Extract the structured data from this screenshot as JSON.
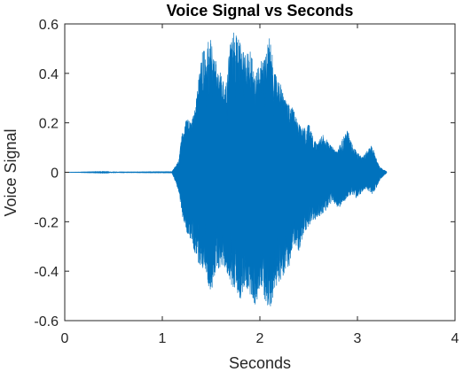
{
  "chart_data": {
    "type": "line",
    "title": "Voice Signal vs Seconds",
    "xlabel": "Seconds",
    "ylabel": "Voice Signal",
    "xlim": [
      0,
      4
    ],
    "ylim": [
      -0.6,
      0.6
    ],
    "xticks": [
      0,
      1,
      2,
      3,
      4
    ],
    "xtick_labels": [
      "0",
      "1",
      "2",
      "3",
      "4"
    ],
    "yticks": [
      0.6,
      0.4,
      0.2,
      0,
      -0.2,
      -0.4,
      -0.6
    ],
    "ytick_labels": [
      "0.6",
      "0.4",
      "0.2",
      "0",
      "-0.2",
      "-0.4",
      "-0.6"
    ],
    "grid": false,
    "line_color": "#0072BD",
    "series": [
      {
        "envelope": {
          "x": [
            0,
            1.1,
            1.17,
            1.2,
            1.25,
            1.3,
            1.35,
            1.4,
            1.45,
            1.5,
            1.55,
            1.6,
            1.65,
            1.7,
            1.75,
            1.8,
            1.85,
            1.9,
            1.95,
            2.0,
            2.05,
            2.1,
            2.15,
            2.2,
            2.25,
            2.3,
            2.35,
            2.4,
            2.45,
            2.5,
            2.55,
            2.6,
            2.65,
            2.7,
            2.75,
            2.8,
            2.85,
            2.9,
            2.95,
            3.0,
            3.05,
            3.1,
            3.15,
            3.2,
            3.23,
            3.3
          ],
          "upper": [
            0,
            0.003,
            0.05,
            0.15,
            0.22,
            0.2,
            0.3,
            0.48,
            0.52,
            0.55,
            0.45,
            0.4,
            0.35,
            0.55,
            0.58,
            0.52,
            0.48,
            0.5,
            0.4,
            0.45,
            0.47,
            0.56,
            0.4,
            0.38,
            0.3,
            0.28,
            0.25,
            0.2,
            0.18,
            0.2,
            0.14,
            0.12,
            0.16,
            0.12,
            0.1,
            0.09,
            0.14,
            0.17,
            0.11,
            0.08,
            0.06,
            0.09,
            0.11,
            0.05,
            0.02,
            0.003
          ],
          "lower": [
            0,
            -0.003,
            -0.08,
            -0.17,
            -0.25,
            -0.28,
            -0.35,
            -0.4,
            -0.45,
            -0.48,
            -0.42,
            -0.38,
            -0.4,
            -0.45,
            -0.48,
            -0.52,
            -0.46,
            -0.5,
            -0.55,
            -0.47,
            -0.52,
            -0.56,
            -0.48,
            -0.44,
            -0.42,
            -0.38,
            -0.3,
            -0.32,
            -0.25,
            -0.22,
            -0.2,
            -0.18,
            -0.17,
            -0.14,
            -0.12,
            -0.15,
            -0.13,
            -0.1,
            -0.09,
            -0.11,
            -0.08,
            -0.07,
            -0.09,
            -0.06,
            -0.03,
            -0.003
          ]
        }
      }
    ]
  }
}
